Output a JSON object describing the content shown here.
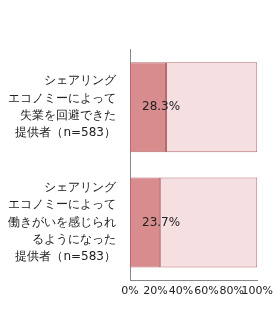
{
  "chart_data": {
    "type": "bar",
    "orientation": "horizontal",
    "stacked": true,
    "grid": false,
    "categories": [
      "シェアリング\nエコノミーによって\n失業を回避できた\n提供者（n=583）",
      "シェアリング\nエコノミーによって\n働きがいを感じられ\nるようになった\n提供者（n=583）"
    ],
    "series": [
      {
        "color": "#d98c8e",
        "values": [
          28.3,
          23.7
        ],
        "value_labels": [
          "28.3%",
          "23.7%"
        ],
        "data_labels": true
      },
      {
        "color": "#f6dfe0",
        "values": [
          71.7,
          76.3
        ]
      }
    ],
    "xlim": [
      0,
      100
    ],
    "xticks": [
      {
        "value": 0,
        "label": "0%"
      },
      {
        "value": 20,
        "label": "20%"
      },
      {
        "value": 40,
        "label": "40%"
      },
      {
        "value": 60,
        "label": "60%"
      },
      {
        "value": 80,
        "label": "80%"
      },
      {
        "value": 100,
        "label": "100%"
      }
    ]
  }
}
